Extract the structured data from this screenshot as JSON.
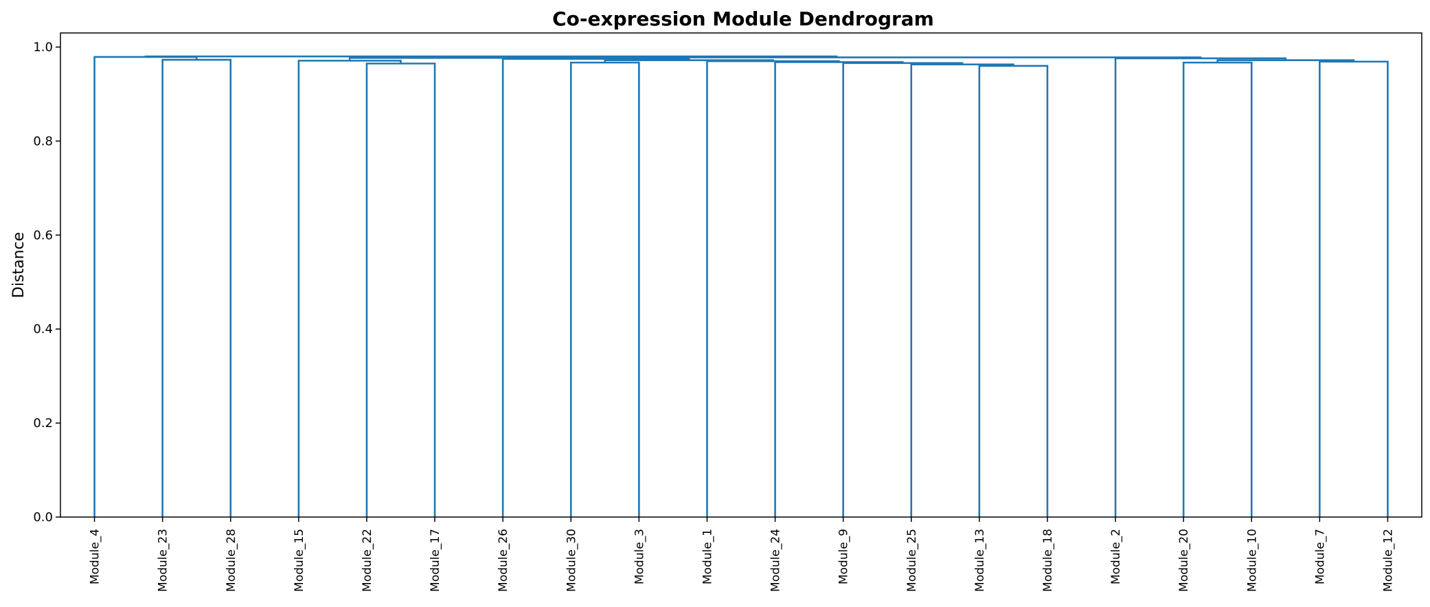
{
  "chart_data": {
    "type": "dendrogram",
    "title": "Co-expression Module Dendrogram",
    "xlabel": "",
    "ylabel": "Distance",
    "ylim": [
      0,
      1.03
    ],
    "yticks": [
      "0.0",
      "0.2",
      "0.4",
      "0.6",
      "0.8",
      "1.0"
    ],
    "leaves": [
      "Module_4",
      "Module_23",
      "Module_28",
      "Module_15",
      "Module_22",
      "Module_17",
      "Module_26",
      "Module_30",
      "Module_3",
      "Module_1",
      "Module_24",
      "Module_9",
      "Module_25",
      "Module_13",
      "Module_18",
      "Module_2",
      "Module_20",
      "Module_10",
      "Module_7",
      "Module_12"
    ],
    "merges": [
      {
        "left": "Module_23",
        "right": "Module_28",
        "height": 0.973
      },
      {
        "left": "Module_4",
        "right": 0,
        "height": 0.979
      },
      {
        "left": "Module_22",
        "right": "Module_17",
        "height": 0.965
      },
      {
        "left": "Module_15",
        "right": 2,
        "height": 0.971
      },
      {
        "left": "Module_30",
        "right": "Module_3",
        "height": 0.967
      },
      {
        "left": "Module_13",
        "right": "Module_18",
        "height": 0.96
      },
      {
        "left": "Module_25",
        "right": 5,
        "height": 0.963
      },
      {
        "left": "Module_9",
        "right": 6,
        "height": 0.966
      },
      {
        "left": "Module_24",
        "right": 7,
        "height": 0.968
      },
      {
        "left": "Module_1",
        "right": 8,
        "height": 0.97
      },
      {
        "left": 4,
        "right": 9,
        "height": 0.972
      },
      {
        "left": "Module_26",
        "right": 10,
        "height": 0.975
      },
      {
        "left": 3,
        "right": 11,
        "height": 0.977
      },
      {
        "left": "Module_20",
        "right": "Module_10",
        "height": 0.967
      },
      {
        "left": "Module_7",
        "right": "Module_12",
        "height": 0.969
      },
      {
        "left": 13,
        "right": 14,
        "height": 0.972
      },
      {
        "left": "Module_2",
        "right": 15,
        "height": 0.976
      },
      {
        "left": 12,
        "right": 16,
        "height": 0.978
      },
      {
        "left": 1,
        "right": 17,
        "height": 0.98
      }
    ],
    "color": "#1f77b4",
    "grid": false
  }
}
